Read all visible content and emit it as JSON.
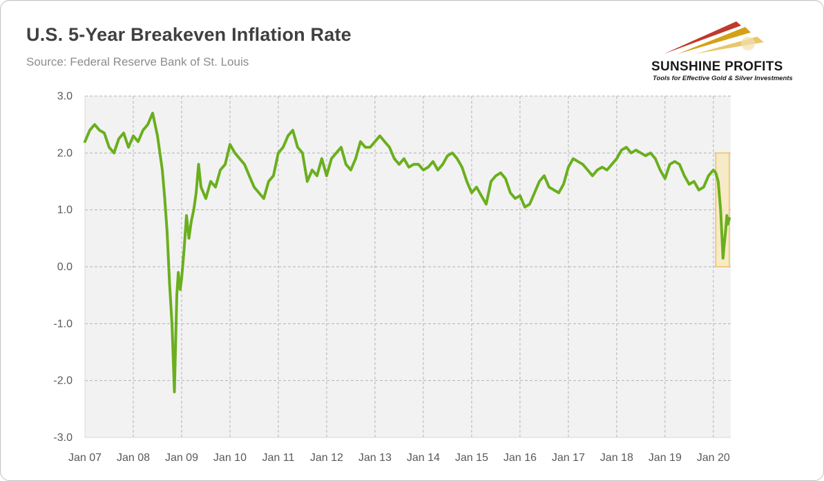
{
  "header": {
    "title": "U.S. 5-Year Breakeven Inflation Rate",
    "subtitle": "Source: Federal Reserve Bank of St. Louis"
  },
  "logo": {
    "name": "SUNSHINE PROFITS",
    "tagline": "Tools for Effective Gold & Silver Investments",
    "colors": [
      "#c0392b",
      "#d4a017",
      "#e8c66a"
    ]
  },
  "colors": {
    "series": "#6aaf1e",
    "plot_background": "#f2f2f2",
    "gridline": "#b3b3b3",
    "highlight_fill": "#f7e9c0",
    "highlight_stroke": "#f0c060"
  },
  "chart_data": {
    "type": "line",
    "title": "U.S. 5-Year Breakeven Inflation Rate",
    "subtitle": "Source: Federal Reserve Bank of St. Louis",
    "xlabel": "",
    "ylabel": "",
    "ylim": [
      -3.0,
      3.0
    ],
    "xlim": [
      "2007-01",
      "2020-05"
    ],
    "y_ticks": [
      "3.0",
      "2.0",
      "1.0",
      "0.0",
      "-1.0",
      "-2.0",
      "-3.0"
    ],
    "y_tick_values": [
      3,
      2,
      1,
      0,
      -1,
      -2,
      -3
    ],
    "x_ticks": [
      "Jan 07",
      "Jan 08",
      "Jan 09",
      "Jan 10",
      "Jan 11",
      "Jan 12",
      "Jan 13",
      "Jan 14",
      "Jan 15",
      "Jan 16",
      "Jan 17",
      "Jan 18",
      "Jan 19",
      "Jan 20"
    ],
    "x_tick_values": [
      2007,
      2008,
      2009,
      2010,
      2011,
      2012,
      2013,
      2014,
      2015,
      2016,
      2017,
      2018,
      2019,
      2020
    ],
    "grid": true,
    "legend": "none",
    "highlight": {
      "x_start": 2020.05,
      "x_end": 2020.33,
      "y_start": 0.0,
      "y_end": 2.0
    },
    "series": [
      {
        "x": [
          2007.0,
          2007.1,
          2007.2,
          2007.3,
          2007.4,
          2007.5,
          2007.6,
          2007.7,
          2007.8,
          2007.9,
          2008.0,
          2008.1,
          2008.2,
          2008.3,
          2008.4,
          2008.5,
          2008.6,
          2008.65,
          2008.7,
          2008.75,
          2008.8,
          2008.85,
          2008.9,
          2008.93,
          2008.97,
          2009.0,
          2009.05,
          2009.1,
          2009.15,
          2009.2,
          2009.25,
          2009.3,
          2009.35,
          2009.4,
          2009.5,
          2009.6,
          2009.7,
          2009.8,
          2009.9,
          2010.0,
          2010.1,
          2010.2,
          2010.3,
          2010.4,
          2010.5,
          2010.6,
          2010.7,
          2010.8,
          2010.9,
          2011.0,
          2011.1,
          2011.2,
          2011.3,
          2011.4,
          2011.5,
          2011.6,
          2011.7,
          2011.8,
          2011.9,
          2012.0,
          2012.1,
          2012.2,
          2012.3,
          2012.4,
          2012.5,
          2012.6,
          2012.7,
          2012.8,
          2012.9,
          2013.0,
          2013.1,
          2013.2,
          2013.3,
          2013.4,
          2013.5,
          2013.6,
          2013.7,
          2013.8,
          2013.9,
          2014.0,
          2014.1,
          2014.2,
          2014.3,
          2014.4,
          2014.5,
          2014.6,
          2014.7,
          2014.8,
          2014.9,
          2015.0,
          2015.1,
          2015.2,
          2015.3,
          2015.4,
          2015.5,
          2015.6,
          2015.7,
          2015.8,
          2015.9,
          2016.0,
          2016.1,
          2016.2,
          2016.3,
          2016.4,
          2016.5,
          2016.6,
          2016.7,
          2016.8,
          2016.9,
          2017.0,
          2017.1,
          2017.2,
          2017.3,
          2017.4,
          2017.5,
          2017.6,
          2017.7,
          2017.8,
          2017.9,
          2018.0,
          2018.1,
          2018.2,
          2018.3,
          2018.4,
          2018.5,
          2018.6,
          2018.7,
          2018.8,
          2018.9,
          2019.0,
          2019.1,
          2019.2,
          2019.3,
          2019.4,
          2019.5,
          2019.6,
          2019.7,
          2019.8,
          2019.9,
          2020.0,
          2020.05,
          2020.1,
          2020.15,
          2020.18,
          2020.2,
          2020.22,
          2020.25,
          2020.28,
          2020.3,
          2020.33
        ],
        "values": [
          2.2,
          2.4,
          2.5,
          2.4,
          2.35,
          2.1,
          2.0,
          2.25,
          2.35,
          2.1,
          2.3,
          2.2,
          2.4,
          2.5,
          2.7,
          2.3,
          1.7,
          1.2,
          0.6,
          -0.3,
          -1.0,
          -2.2,
          -0.5,
          -0.1,
          -0.4,
          -0.2,
          0.3,
          0.9,
          0.5,
          0.8,
          1.0,
          1.3,
          1.8,
          1.4,
          1.2,
          1.5,
          1.4,
          1.7,
          1.8,
          2.15,
          2.0,
          1.9,
          1.8,
          1.6,
          1.4,
          1.3,
          1.2,
          1.5,
          1.6,
          2.0,
          2.1,
          2.3,
          2.4,
          2.1,
          2.0,
          1.5,
          1.7,
          1.6,
          1.9,
          1.6,
          1.9,
          2.0,
          2.1,
          1.8,
          1.7,
          1.9,
          2.2,
          2.1,
          2.1,
          2.2,
          2.3,
          2.2,
          2.1,
          1.9,
          1.8,
          1.9,
          1.75,
          1.8,
          1.8,
          1.7,
          1.75,
          1.85,
          1.7,
          1.8,
          1.95,
          2.0,
          1.9,
          1.75,
          1.5,
          1.3,
          1.4,
          1.25,
          1.1,
          1.5,
          1.6,
          1.65,
          1.55,
          1.3,
          1.2,
          1.25,
          1.05,
          1.1,
          1.3,
          1.5,
          1.6,
          1.4,
          1.35,
          1.3,
          1.45,
          1.75,
          1.9,
          1.85,
          1.8,
          1.7,
          1.6,
          1.7,
          1.75,
          1.7,
          1.8,
          1.9,
          2.05,
          2.1,
          2.0,
          2.05,
          2.0,
          1.95,
          2.0,
          1.9,
          1.7,
          1.55,
          1.8,
          1.85,
          1.8,
          1.6,
          1.45,
          1.5,
          1.35,
          1.4,
          1.6,
          1.7,
          1.65,
          1.5,
          1.0,
          0.5,
          0.15,
          0.35,
          0.6,
          0.9,
          0.75,
          0.85
        ]
      }
    ]
  }
}
